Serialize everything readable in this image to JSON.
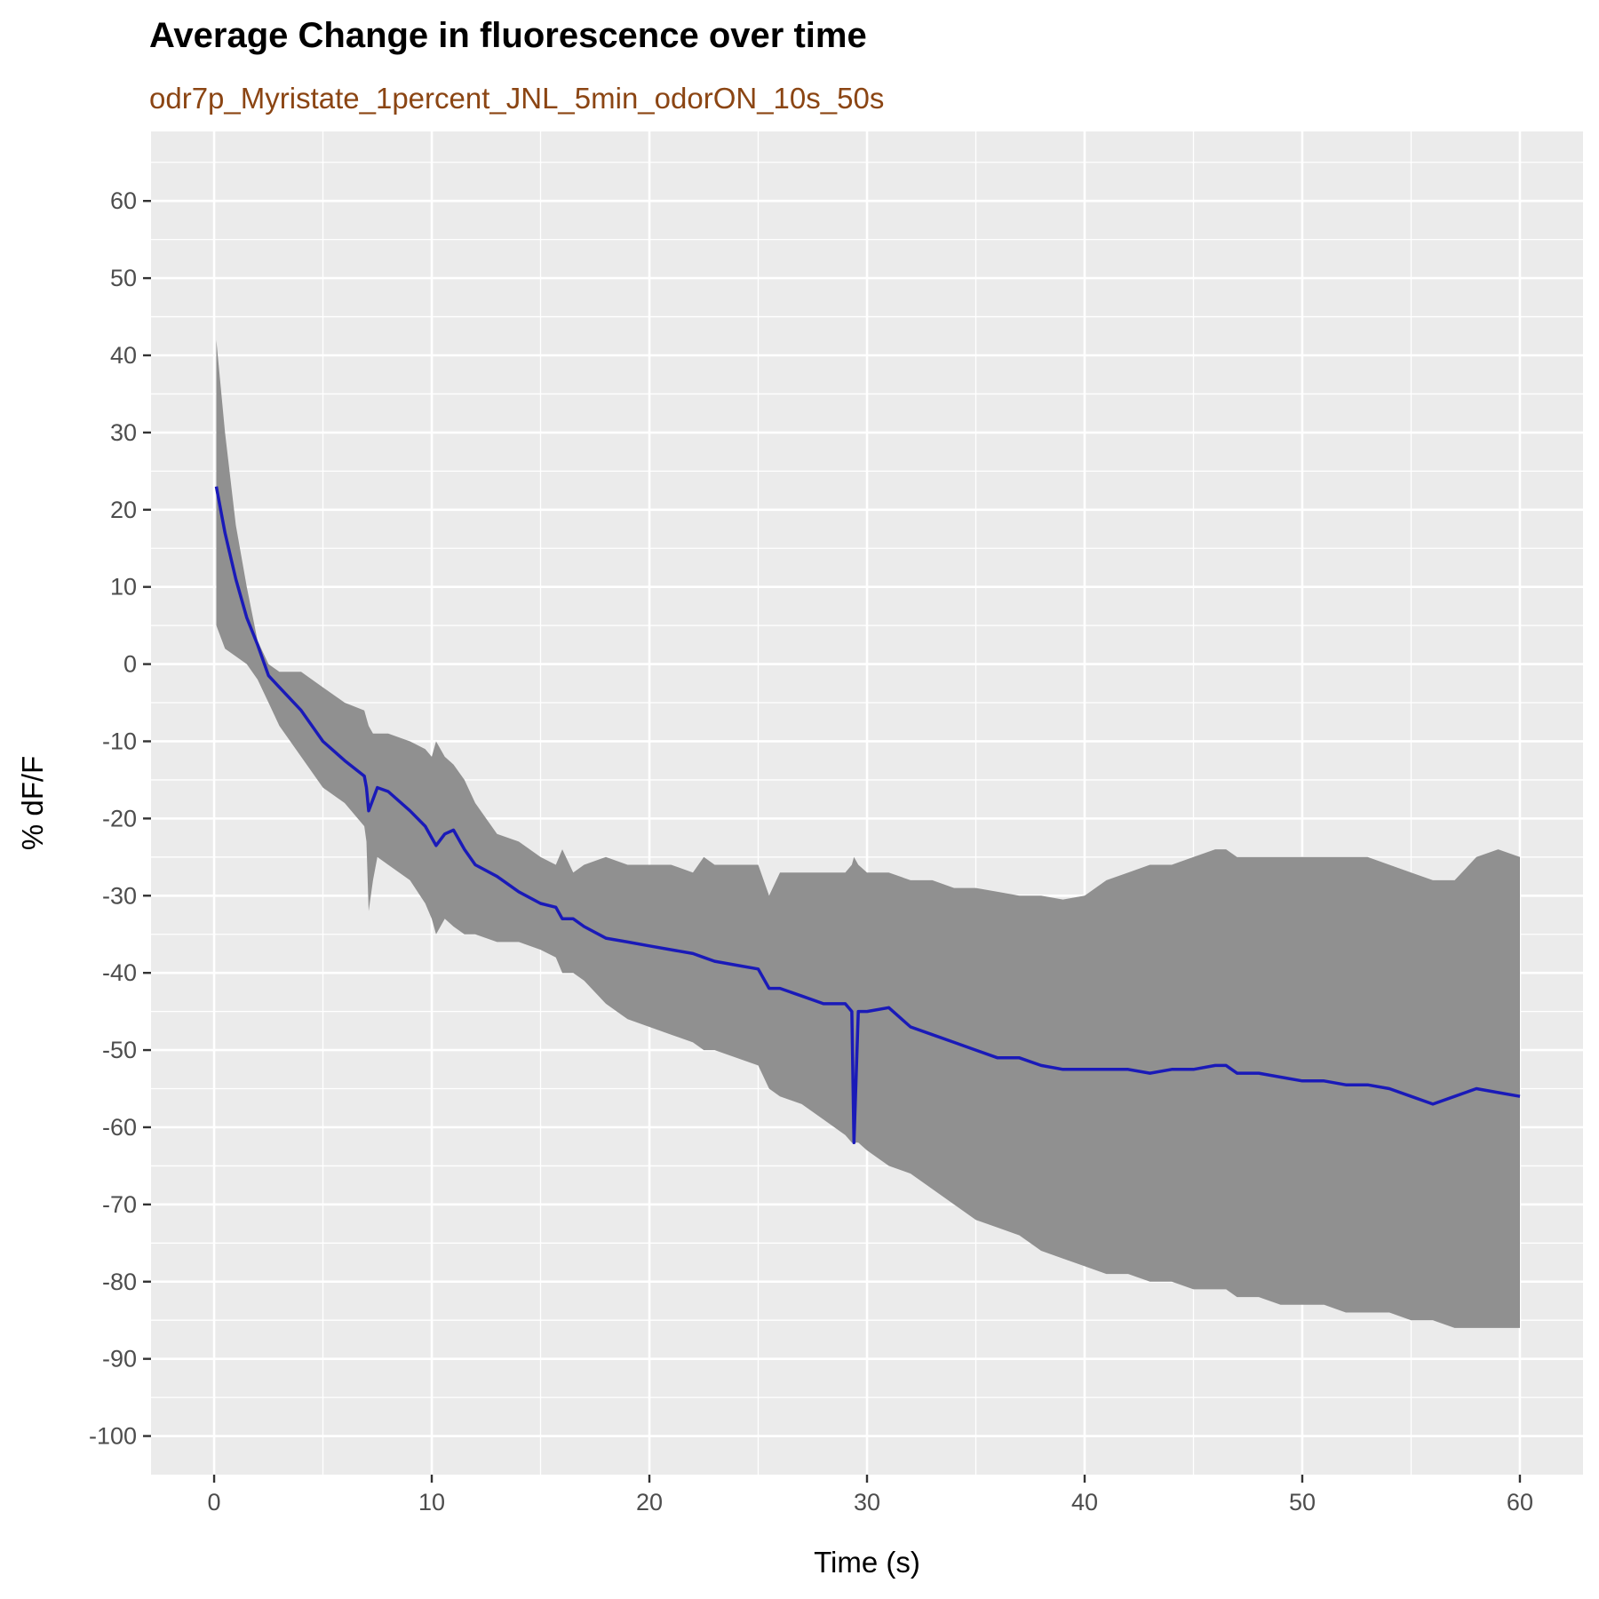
{
  "chart_data": {
    "type": "line",
    "title": "Average Change in fluorescence over time",
    "subtitle": "odr7p_Myristate_1percent_JNL_5min_odorON_10s_50s",
    "xlabel": "Time (s)",
    "ylabel": "% dF/F",
    "xlim": [
      -2.9,
      62.9
    ],
    "ylim": [
      -105,
      69
    ],
    "x_ticks": [
      0,
      10,
      20,
      30,
      40,
      50,
      60
    ],
    "y_ticks": [
      60,
      50,
      40,
      30,
      20,
      10,
      0,
      -10,
      -20,
      -30,
      -40,
      -50,
      -60,
      -70,
      -80,
      -90,
      -100
    ],
    "x_tick_labels": [
      "0",
      "10",
      "20",
      "30",
      "40",
      "50",
      "60"
    ],
    "y_tick_labels": [
      "60",
      "50",
      "40",
      "30",
      "20",
      "10",
      "0",
      "-10",
      "-20",
      "-30",
      "-40",
      "-50",
      "-60",
      "-70",
      "-80",
      "-90",
      "-100"
    ],
    "grid": true,
    "background": "#EBEBEB",
    "line_color": "#1A1AB8",
    "ribbon_color": "#909090",
    "series": [
      {
        "x": [
          0.1,
          0.5,
          1.0,
          1.5,
          2.0,
          2.5,
          3.0,
          4.0,
          5.0,
          6.0,
          6.9,
          7.0,
          7.1,
          7.3,
          7.5,
          8.0,
          9.0,
          9.7,
          10.0,
          10.2,
          10.6,
          11.0,
          11.5,
          12.0,
          13.0,
          14.0,
          15.0,
          15.7,
          16.0,
          16.5,
          17.0,
          18.0,
          19.0,
          20.0,
          21.0,
          22.0,
          22.5,
          23.0,
          24.0,
          25.0,
          25.5,
          26.0,
          27.0,
          28.0,
          29.0,
          29.3,
          29.4,
          29.6,
          30.0,
          31.0,
          32.0,
          33.0,
          34.0,
          35.0,
          36.0,
          37.0,
          38.0,
          39.0,
          40.0,
          41.0,
          42.0,
          43.0,
          44.0,
          45.0,
          46.0,
          46.5,
          47.0,
          48.0,
          49.0,
          50.0,
          51.0,
          52.0,
          53.0,
          54.0,
          55.0,
          56.0,
          57.0,
          58.0,
          59.0,
          60.0
        ],
        "mean": [
          23,
          17,
          11,
          6,
          2.5,
          -1.5,
          -3,
          -6,
          -10,
          -12.5,
          -14.5,
          -16,
          -19,
          -17.5,
          -16,
          -16.5,
          -19,
          -21,
          -22.5,
          -23.5,
          -22,
          -21.5,
          -24,
          -26,
          -27.5,
          -29.5,
          -31,
          -31.5,
          -33,
          -33,
          -34,
          -35.5,
          -36,
          -36.5,
          -37,
          -37.5,
          -38,
          -38.5,
          -39,
          -39.5,
          -42,
          -42,
          -43,
          -44,
          -44,
          -45,
          -62,
          -45,
          -45,
          -44.5,
          -47,
          -48,
          -49,
          -50,
          -51,
          -51,
          -52,
          -52.5,
          -52.5,
          -52.5,
          -52.5,
          -53,
          -52.5,
          -52.5,
          -52,
          -52,
          -53,
          -53,
          -53.5,
          -54,
          -54,
          -54.5,
          -54.5,
          -55,
          -56,
          -57,
          -56,
          -55,
          -55.5,
          -56
        ],
        "upper": [
          42,
          30,
          18,
          10,
          3,
          0,
          -1,
          -1,
          -3,
          -5,
          -6,
          -7,
          -8,
          -9,
          -9,
          -9,
          -10,
          -11,
          -12,
          -10,
          -12,
          -13,
          -15,
          -18,
          -22,
          -23,
          -25,
          -26,
          -24,
          -27,
          -26,
          -25,
          -26,
          -26,
          -26,
          -27,
          -25,
          -26,
          -26,
          -26,
          -30,
          -27,
          -27,
          -27,
          -27,
          -26,
          -25,
          -26,
          -27,
          -27,
          -28,
          -28,
          -29,
          -29,
          -29.5,
          -30,
          -30,
          -30.5,
          -30,
          -28,
          -27,
          -26,
          -26,
          -25,
          -24,
          -24,
          -25,
          -25,
          -25,
          -25,
          -25,
          -25,
          -25,
          -26,
          -27,
          -28,
          -28,
          -25,
          -24,
          -25
        ],
        "lower": [
          5,
          2,
          1,
          0,
          -2,
          -5,
          -8,
          -12,
          -16,
          -18,
          -21,
          -23,
          -32,
          -28,
          -25,
          -26,
          -28,
          -31,
          -33,
          -35,
          -33,
          -34,
          -35,
          -35,
          -36,
          -36,
          -37,
          -38,
          -40,
          -40,
          -41,
          -44,
          -46,
          -47,
          -48,
          -49,
          -50,
          -50,
          -51,
          -52,
          -55,
          -56,
          -57,
          -59,
          -61,
          -62,
          -62,
          -62,
          -63,
          -65,
          -66,
          -68,
          -70,
          -72,
          -73,
          -74,
          -76,
          -77,
          -78,
          -79,
          -79,
          -80,
          -80,
          -81,
          -81,
          -81,
          -82,
          -82,
          -83,
          -83,
          -83,
          -84,
          -84,
          -84,
          -85,
          -85,
          -86,
          -86,
          -86,
          -86
        ]
      }
    ]
  }
}
